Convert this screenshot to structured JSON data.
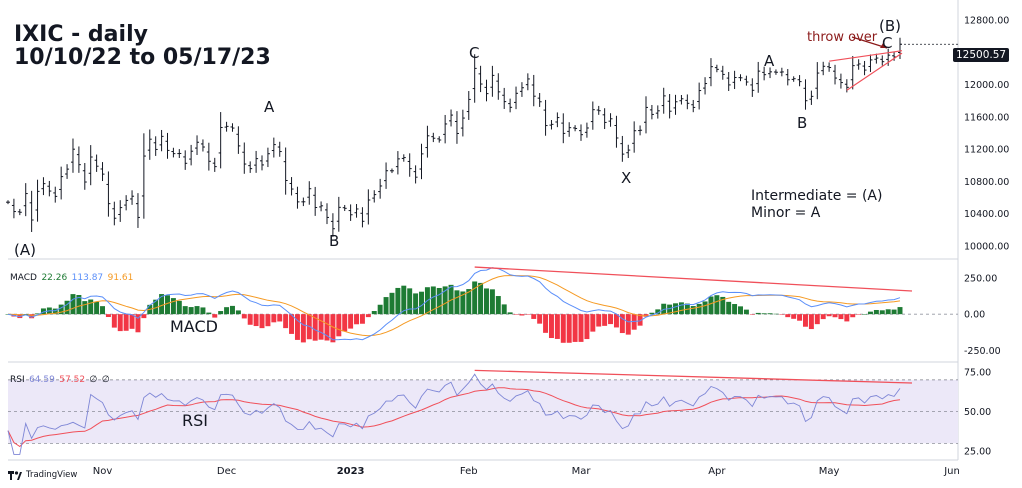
{
  "title_line1": "IXIC - daily",
  "title_line2": "10/10/22 to 05/17/23",
  "last_price_tag": "12500.57",
  "annotation_throw_over": "throw over",
  "notes": [
    "Intermediate = (A)",
    "Minor = A"
  ],
  "labels": {
    "macd": "MACD",
    "rsi": "RSI"
  },
  "waves": [
    {
      "label": "(A)",
      "date": "2022-10-13"
    },
    {
      "label": "A",
      "date": "2022-12-13"
    },
    {
      "label": "B",
      "date": "2022-12-28"
    },
    {
      "label": "C",
      "date": "2023-02-02"
    },
    {
      "label": "X",
      "date": "2023-03-13"
    },
    {
      "label": "A",
      "date": "2023-04-18"
    },
    {
      "label": "B",
      "date": "2023-04-26"
    },
    {
      "label": "(B)",
      "date": "2023-05-18"
    },
    {
      "label": "C",
      "date": "2023-05-18"
    }
  ],
  "legend": {
    "macd": {
      "name": "MACD",
      "values": [
        "22.26",
        "113.87",
        "91.61"
      ]
    },
    "rsi": {
      "name": "RSI",
      "values": [
        "64.59",
        "57.52",
        "∅",
        "∅"
      ]
    }
  },
  "watermark": "TradingView",
  "colors": {
    "macd_line": "#5b8ff9",
    "signal_line": "#f59a23",
    "hist_pos": "#1e7b34",
    "hist_neg": "#f23645",
    "trend": "#f0505a",
    "rsi_line": "#7e86d6",
    "rsi_ma": "#f0505a",
    "rsi_band": "#ece8f8",
    "text": "#131722"
  },
  "chart_data": [
    {
      "type": "ohlc",
      "title": "IXIC - daily",
      "y_ticks": [
        10000,
        10400,
        10800,
        11200,
        11600,
        12000,
        12400,
        12800
      ],
      "y_tick_labels": [
        "10000.00",
        "10400.00",
        "10800.00",
        "11200.00",
        "11600.00",
        "12000.00",
        "12400.00",
        "12800.00"
      ],
      "ylim": [
        9850,
        12900
      ],
      "x_tick_labels": [
        "Nov",
        "Dec",
        "2023",
        "Feb",
        "Mar",
        "Apr",
        "May",
        "Jun"
      ],
      "closes": [
        [
          "2022-10-10",
          10542
        ],
        [
          "2022-10-11",
          10426
        ],
        [
          "2022-10-12",
          10417
        ],
        [
          "2022-10-13",
          10649
        ],
        [
          "2022-10-14",
          10321
        ],
        [
          "2022-10-17",
          10676
        ],
        [
          "2022-10-18",
          10772
        ],
        [
          "2022-10-19",
          10680
        ],
        [
          "2022-10-20",
          10614
        ],
        [
          "2022-10-21",
          10859
        ],
        [
          "2022-10-24",
          10952
        ],
        [
          "2022-10-25",
          11199
        ],
        [
          "2022-10-26",
          11007
        ],
        [
          "2022-10-27",
          10792
        ],
        [
          "2022-10-28",
          11102
        ],
        [
          "2022-10-31",
          10988
        ],
        [
          "2022-11-01",
          10890
        ],
        [
          "2022-11-02",
          10524
        ],
        [
          "2022-11-03",
          10343
        ],
        [
          "2022-11-04",
          10475
        ],
        [
          "2022-11-07",
          10564
        ],
        [
          "2022-11-08",
          10616
        ],
        [
          "2022-11-09",
          10353
        ],
        [
          "2022-11-10",
          11114
        ],
        [
          "2022-11-11",
          11323
        ],
        [
          "2022-11-14",
          11196
        ],
        [
          "2022-11-15",
          11358
        ],
        [
          "2022-11-16",
          11184
        ],
        [
          "2022-11-17",
          11144
        ],
        [
          "2022-11-18",
          11146
        ],
        [
          "2022-11-21",
          11024
        ],
        [
          "2022-11-22",
          11174
        ],
        [
          "2022-11-23",
          11285
        ],
        [
          "2022-11-25",
          11226
        ],
        [
          "2022-11-28",
          11049
        ],
        [
          "2022-11-29",
          10983
        ],
        [
          "2022-11-30",
          11468
        ],
        [
          "2022-12-01",
          11482
        ],
        [
          "2022-12-02",
          11461
        ],
        [
          "2022-12-05",
          11240
        ],
        [
          "2022-12-06",
          11015
        ],
        [
          "2022-12-07",
          10958
        ],
        [
          "2022-12-08",
          11082
        ],
        [
          "2022-12-09",
          11004
        ],
        [
          "2022-12-12",
          11143
        ],
        [
          "2022-12-13",
          11256
        ],
        [
          "2022-12-14",
          11170
        ],
        [
          "2022-12-15",
          10811
        ],
        [
          "2022-12-16",
          10705
        ],
        [
          "2022-12-19",
          10546
        ],
        [
          "2022-12-20",
          10547
        ],
        [
          "2022-12-21",
          10709
        ],
        [
          "2022-12-22",
          10476
        ],
        [
          "2022-12-23",
          10497
        ],
        [
          "2022-12-27",
          10353
        ],
        [
          "2022-12-28",
          10213
        ],
        [
          "2022-12-29",
          10478
        ],
        [
          "2022-12-30",
          10466
        ],
        [
          "2023-01-03",
          10386
        ],
        [
          "2023-01-04",
          10458
        ],
        [
          "2023-01-05",
          10305
        ],
        [
          "2023-01-06",
          10569
        ],
        [
          "2023-01-09",
          10636
        ],
        [
          "2023-01-10",
          10743
        ],
        [
          "2023-01-11",
          10932
        ],
        [
          "2023-01-12",
          10931
        ],
        [
          "2023-01-13",
          11079
        ],
        [
          "2023-01-17",
          11095
        ],
        [
          "2023-01-18",
          10958
        ],
        [
          "2023-01-19",
          10852
        ],
        [
          "2023-01-20",
          11141
        ],
        [
          "2023-01-23",
          11365
        ],
        [
          "2023-01-24",
          11335
        ],
        [
          "2023-01-25",
          11313
        ],
        [
          "2023-01-26",
          11512
        ],
        [
          "2023-01-27",
          11622
        ],
        [
          "2023-01-30",
          11394
        ],
        [
          "2023-01-31",
          11585
        ],
        [
          "2023-02-01",
          11816
        ],
        [
          "2023-02-02",
          12201
        ],
        [
          "2023-02-03",
          12007
        ],
        [
          "2023-02-06",
          11888
        ],
        [
          "2023-02-07",
          12114
        ],
        [
          "2023-02-08",
          11910
        ],
        [
          "2023-02-09",
          11789
        ],
        [
          "2023-02-10",
          11718
        ],
        [
          "2023-02-13",
          11892
        ],
        [
          "2023-02-14",
          11961
        ],
        [
          "2023-02-15",
          12070
        ],
        [
          "2023-02-16",
          11856
        ],
        [
          "2023-02-17",
          11787
        ],
        [
          "2023-02-21",
          11492
        ],
        [
          "2023-02-22",
          11507
        ],
        [
          "2023-02-23",
          11591
        ],
        [
          "2023-02-24",
          11395
        ],
        [
          "2023-02-27",
          11466
        ],
        [
          "2023-02-28",
          11456
        ],
        [
          "2023-03-01",
          11379
        ],
        [
          "2023-03-02",
          11462
        ],
        [
          "2023-03-03",
          11689
        ],
        [
          "2023-03-06",
          11676
        ],
        [
          "2023-03-07",
          11531
        ],
        [
          "2023-03-08",
          11576
        ],
        [
          "2023-03-09",
          11338
        ],
        [
          "2023-03-10",
          11138
        ],
        [
          "2023-03-13",
          11188
        ],
        [
          "2023-03-14",
          11428
        ],
        [
          "2023-03-15",
          11434
        ],
        [
          "2023-03-16",
          11717
        ],
        [
          "2023-03-17",
          11630
        ],
        [
          "2023-03-20",
          11675
        ],
        [
          "2023-03-21",
          11860
        ],
        [
          "2023-03-22",
          11670
        ],
        [
          "2023-03-23",
          11787
        ],
        [
          "2023-03-24",
          11824
        ],
        [
          "2023-03-27",
          11768
        ],
        [
          "2023-03-28",
          11717
        ],
        [
          "2023-03-29",
          11926
        ],
        [
          "2023-03-30",
          12013
        ],
        [
          "2023-03-31",
          12222
        ],
        [
          "2023-04-03",
          12189
        ],
        [
          "2023-04-04",
          12126
        ],
        [
          "2023-04-05",
          11996
        ],
        [
          "2023-04-06",
          12088
        ],
        [
          "2023-04-10",
          12084
        ],
        [
          "2023-04-11",
          12032
        ],
        [
          "2023-04-12",
          11929
        ],
        [
          "2023-04-13",
          12167
        ],
        [
          "2023-04-14",
          12123
        ],
        [
          "2023-04-17",
          12158
        ],
        [
          "2023-04-18",
          12153
        ],
        [
          "2023-04-19",
          12157
        ],
        [
          "2023-04-20",
          12060
        ],
        [
          "2023-04-21",
          12073
        ],
        [
          "2023-04-24",
          12037
        ],
        [
          "2023-04-25",
          11800
        ],
        [
          "2023-04-26",
          11854
        ],
        [
          "2023-04-27",
          12143
        ],
        [
          "2023-04-28",
          12227
        ],
        [
          "2023-05-01",
          12212
        ],
        [
          "2023-05-02",
          12081
        ],
        [
          "2023-05-03",
          12025
        ],
        [
          "2023-05-04",
          11966
        ],
        [
          "2023-05-05",
          12235
        ],
        [
          "2023-05-08",
          12256
        ],
        [
          "2023-05-09",
          12180
        ],
        [
          "2023-05-10",
          12306
        ],
        [
          "2023-05-11",
          12329
        ],
        [
          "2023-05-12",
          12284
        ],
        [
          "2023-05-15",
          12365
        ],
        [
          "2023-05-16",
          12343
        ],
        [
          "2023-05-17",
          12500
        ]
      ]
    },
    {
      "type": "line",
      "title": "MACD",
      "y_tick_labels": [
        "250.00",
        "0.00",
        "-250.00"
      ],
      "y_ticks": [
        250,
        0,
        -250
      ],
      "ylim": [
        -330,
        360
      ],
      "series": [
        {
          "name": "MACD"
        },
        {
          "name": "Signal"
        },
        {
          "name": "Histogram"
        }
      ],
      "last_values": {
        "histogram": 22.26,
        "macd": 113.87,
        "signal": 91.61
      }
    },
    {
      "type": "line",
      "title": "RSI",
      "y_tick_labels": [
        "75.00",
        "50.00",
        "25.00"
      ],
      "y_ticks": [
        75,
        50,
        25
      ],
      "ylim": [
        22,
        80
      ],
      "band": [
        30,
        70
      ],
      "last_values": {
        "rsi": 64.59,
        "rsi_ma": 57.52
      }
    }
  ]
}
